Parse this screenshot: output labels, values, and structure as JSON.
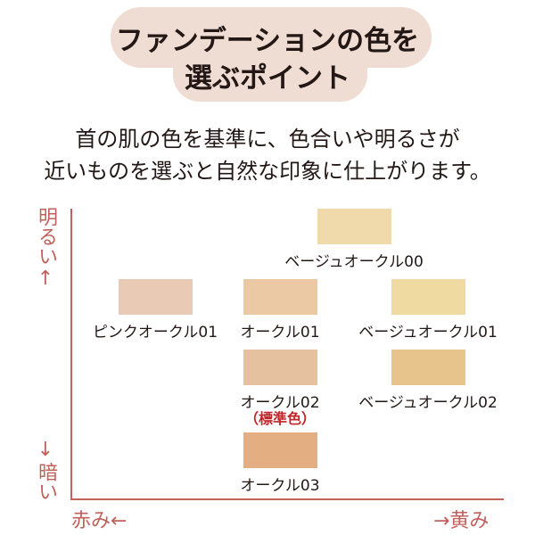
{
  "header": {
    "title_line1": "ファンデーションの色を",
    "title_line2": "選ぶポイント",
    "bg_color": "#efdcd3"
  },
  "description": {
    "line1": "首の肌の色を基準に、色合いや明るさが",
    "line2": "近いものを選ぶと自然な印象に仕上がります。"
  },
  "axes": {
    "bright": "明るい",
    "up_arrow": "↑",
    "down_arrow": "↓",
    "dark": "暗い",
    "red": "赤み←",
    "yellow": "→黄み",
    "color": "#c0625b"
  },
  "swatches": [
    {
      "name": "ベージュオークル00",
      "color": "#f0d9ab"
    },
    {
      "name": "ピンクオークル01",
      "color": "#e9cbb5"
    },
    {
      "name": "オークル01",
      "color": "#ecc9a5"
    },
    {
      "name": "ベージュオークル01",
      "color": "#efdaa2"
    },
    {
      "name": "オークル02",
      "color": "#e6c19f",
      "note": "（標準色）"
    },
    {
      "name": "ベージュオークル02",
      "color": "#e7c48c"
    },
    {
      "name": "オークル03",
      "color": "#e3ae82"
    }
  ]
}
